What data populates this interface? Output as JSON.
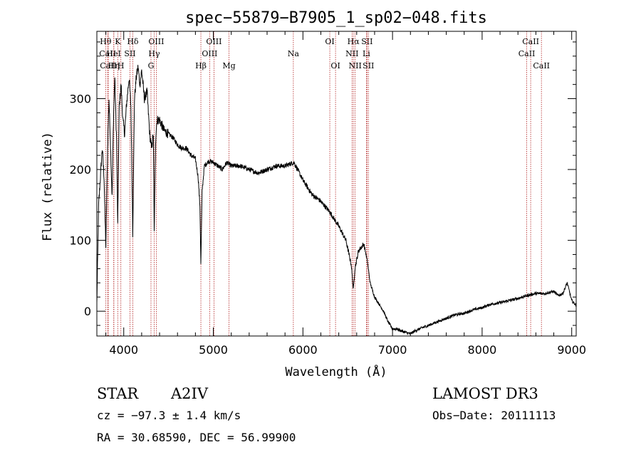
{
  "chart_data": {
    "type": "line",
    "title": "spec−55879−B7905_1_sp02−048.fits",
    "xlabel": "Wavelength (Å)",
    "ylabel": "Flux (relative)",
    "xlim": [
      3700,
      9050
    ],
    "ylim": [
      -35,
      395
    ],
    "xticks": [
      4000,
      5000,
      6000,
      7000,
      8000,
      9000
    ],
    "yticks": [
      0,
      100,
      200,
      300
    ],
    "series": [
      {
        "name": "flux",
        "x": [
          3700,
          3720,
          3740,
          3760,
          3780,
          3800,
          3820,
          3835,
          3850,
          3870,
          3885,
          3900,
          3920,
          3933,
          3950,
          3970,
          3990,
          4010,
          4030,
          4060,
          4080,
          4101,
          4120,
          4140,
          4160,
          4180,
          4200,
          4230,
          4260,
          4290,
          4310,
          4330,
          4340,
          4355,
          4370,
          4400,
          4450,
          4500,
          4550,
          4600,
          4650,
          4700,
          4750,
          4800,
          4830,
          4850,
          4861,
          4875,
          4900,
          4950,
          5000,
          5050,
          5100,
          5150,
          5200,
          5300,
          5400,
          5500,
          5600,
          5700,
          5800,
          5900,
          6000,
          6100,
          6200,
          6300,
          6400,
          6480,
          6540,
          6563,
          6580,
          6620,
          6680,
          6720,
          6750,
          6800,
          6850,
          6900,
          6950,
          7000,
          7050,
          7100,
          7150,
          7200,
          7250,
          7300,
          7400,
          7500,
          7600,
          7700,
          7800,
          7900,
          8000,
          8100,
          8200,
          8300,
          8400,
          8500,
          8600,
          8700,
          8800,
          8850,
          8900,
          8950,
          9000,
          9050
        ],
        "y": [
          10,
          150,
          190,
          230,
          190,
          90,
          230,
          300,
          245,
          160,
          270,
          330,
          240,
          120,
          290,
          320,
          270,
          250,
          290,
          330,
          290,
          110,
          300,
          330,
          345,
          320,
          340,
          300,
          310,
          250,
          230,
          250,
          110,
          240,
          270,
          270,
          255,
          250,
          245,
          235,
          230,
          230,
          220,
          215,
          190,
          150,
          65,
          170,
          205,
          212,
          210,
          205,
          200,
          210,
          205,
          205,
          200,
          195,
          200,
          205,
          205,
          210,
          185,
          165,
          155,
          140,
          120,
          100,
          65,
          30,
          60,
          85,
          95,
          70,
          40,
          20,
          10,
          0,
          -15,
          -25,
          -25,
          -28,
          -30,
          -32,
          -28,
          -25,
          -20,
          -15,
          -10,
          -5,
          -3,
          2,
          5,
          10,
          12,
          15,
          18,
          22,
          25,
          25,
          28,
          22,
          25,
          40,
          15,
          8
        ]
      }
    ],
    "spectral_lines": [
      {
        "label": "Hθ",
        "wavelength": 3798,
        "row": 1
      },
      {
        "label": "CaII",
        "wavelength": 3820,
        "row": 2
      },
      {
        "label": "CaII",
        "wavelength": 3828,
        "row": 3
      },
      {
        "label": "HeI",
        "wavelength": 3888,
        "row": 2
      },
      {
        "label": "K",
        "wavelength": 3933,
        "row": 1
      },
      {
        "label": "Hη",
        "wavelength": 3890,
        "row": 3
      },
      {
        "label": "SII",
        "wavelength": 4070,
        "row": 2
      },
      {
        "label": "H",
        "wavelength": 3968,
        "row": 3
      },
      {
        "label": "Hδ",
        "wavelength": 4101,
        "row": 1
      },
      {
        "label": "OIII",
        "wavelength": 4363,
        "row": 1
      },
      {
        "label": "Hγ",
        "wavelength": 4340,
        "row": 2
      },
      {
        "label": "G",
        "wavelength": 4304,
        "row": 3
      },
      {
        "label": "Hβ",
        "wavelength": 4861,
        "row": 3
      },
      {
        "label": "OIII",
        "wavelength": 5007,
        "row": 1
      },
      {
        "label": "OIII",
        "wavelength": 4959,
        "row": 2
      },
      {
        "label": "Mg",
        "wavelength": 5175,
        "row": 3
      },
      {
        "label": "Na",
        "wavelength": 5893,
        "row": 2
      },
      {
        "label": "OI",
        "wavelength": 6300,
        "row": 1
      },
      {
        "label": "OI",
        "wavelength": 6364,
        "row": 3
      },
      {
        "label": "Hα",
        "wavelength": 6563,
        "row": 1
      },
      {
        "label": "SII",
        "wavelength": 6716,
        "row": 1
      },
      {
        "label": "NII",
        "wavelength": 6548,
        "row": 2
      },
      {
        "label": "Li",
        "wavelength": 6708,
        "row": 2
      },
      {
        "label": "NII",
        "wavelength": 6583,
        "row": 3
      },
      {
        "label": "SII",
        "wavelength": 6731,
        "row": 3
      },
      {
        "label": "CaII",
        "wavelength": 8542,
        "row": 1
      },
      {
        "label": "CaII",
        "wavelength": 8498,
        "row": 2
      },
      {
        "label": "CaII",
        "wavelength": 8662,
        "row": 3
      }
    ]
  },
  "info": {
    "object_class": "STAR",
    "subclass": "A2IV",
    "redshift": "cz = −97.3 ± 1.4 km/s",
    "coords": "RA =  30.68590, DEC =  56.99900",
    "survey": "LAMOST DR3",
    "obs_date": "Obs−Date: 20111113"
  },
  "colors": {
    "axis": "#000000",
    "spectrum": "#000000",
    "line_marker": "#b22222",
    "background": "#ffffff"
  }
}
